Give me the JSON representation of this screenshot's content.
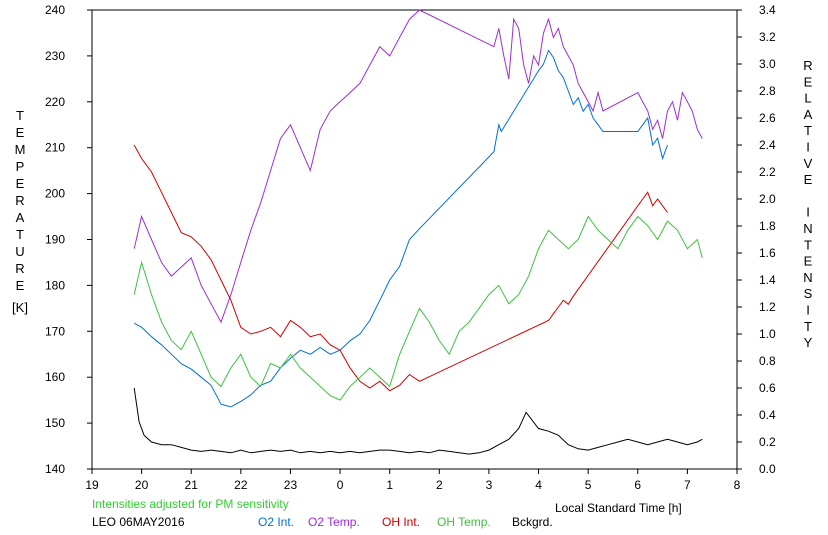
{
  "chart_data": {
    "type": "line",
    "ylabel_left": "TEMPERATURE",
    "ylabel_left_unit": "[K]",
    "ylabel_right": "RELATIVE INTENSITY",
    "xlabel": "Local Standard Time [h]",
    "note": "Intensities adjusted for PM sensitivity",
    "footer_station": "LEO 06MAY2016",
    "x_tick_labels": [
      "19",
      "20",
      "21",
      "22",
      "23",
      "0",
      "1",
      "2",
      "3",
      "4",
      "5",
      "6",
      "7",
      "8"
    ],
    "xlim": [
      19,
      32
    ],
    "ylim_left": [
      140,
      240
    ],
    "y_left_ticks": [
      140,
      150,
      160,
      170,
      180,
      190,
      200,
      210,
      220,
      230,
      240
    ],
    "ylim_right": [
      0.0,
      3.4
    ],
    "y_right_ticks": [
      "0.0",
      "0.2",
      "0.4",
      "0.6",
      "0.8",
      "1.0",
      "1.2",
      "1.4",
      "1.6",
      "1.8",
      "2.0",
      "2.2",
      "2.4",
      "2.6",
      "2.8",
      "3.0",
      "3.2",
      "3.4"
    ],
    "grid": false,
    "series": [
      {
        "name": "O2 Int.",
        "axis": "right",
        "color": "#0070d0",
        "x": [
          19.85,
          20.0,
          20.2,
          20.4,
          20.6,
          20.8,
          21.0,
          21.2,
          21.4,
          21.6,
          21.8,
          22.0,
          22.2,
          22.4,
          22.6,
          22.8,
          23.0,
          23.2,
          23.4,
          23.6,
          23.8,
          24.0,
          24.2,
          24.4,
          24.6,
          24.8,
          25.0,
          25.2,
          25.4,
          25.6,
          27.1,
          27.2,
          27.25,
          28.0,
          28.1,
          28.2,
          28.3,
          28.4,
          28.5,
          28.6,
          28.7,
          28.8,
          28.9,
          29.0,
          29.1,
          29.2,
          29.3,
          30.0,
          30.1,
          30.2,
          30.3,
          30.4,
          30.5,
          30.6
        ],
        "y": [
          1.08,
          1.05,
          0.98,
          0.92,
          0.85,
          0.78,
          0.74,
          0.68,
          0.62,
          0.48,
          0.46,
          0.5,
          0.55,
          0.62,
          0.65,
          0.75,
          0.82,
          0.88,
          0.85,
          0.9,
          0.85,
          0.88,
          0.95,
          1.0,
          1.1,
          1.25,
          1.4,
          1.5,
          1.7,
          1.78,
          2.35,
          2.55,
          2.5,
          2.95,
          3.0,
          3.1,
          3.05,
          2.95,
          2.9,
          2.8,
          2.7,
          2.75,
          2.65,
          2.7,
          2.6,
          2.55,
          2.5,
          2.5,
          2.55,
          2.6,
          2.4,
          2.45,
          2.3,
          2.4
        ]
      },
      {
        "name": "O2 Temp.",
        "axis": "left",
        "color": "#9b30d0",
        "x": [
          19.85,
          20.0,
          20.2,
          20.4,
          20.6,
          20.8,
          21.0,
          21.2,
          21.4,
          21.6,
          21.8,
          22.0,
          22.2,
          22.4,
          22.6,
          22.8,
          23.0,
          23.2,
          23.4,
          23.6,
          23.8,
          24.0,
          24.2,
          24.4,
          24.6,
          24.8,
          25.0,
          25.2,
          25.4,
          25.6,
          27.1,
          27.2,
          27.3,
          27.4,
          27.5,
          27.6,
          27.7,
          27.8,
          27.9,
          28.0,
          28.1,
          28.2,
          28.3,
          28.4,
          28.5,
          28.6,
          28.7,
          28.8,
          28.9,
          29.0,
          29.1,
          29.2,
          29.3,
          30.0,
          30.1,
          30.2,
          30.3,
          30.4,
          30.5,
          30.6,
          30.7,
          30.8,
          30.9,
          31.0,
          31.1,
          31.2,
          31.3
        ],
        "y": [
          188,
          195,
          190,
          185,
          182,
          184,
          186,
          180,
          176,
          172,
          178,
          185,
          192,
          198,
          205,
          212,
          215,
          210,
          205,
          214,
          218,
          220,
          222,
          224,
          228,
          232,
          230,
          234,
          238,
          242,
          232,
          236,
          230,
          225,
          238,
          236,
          228,
          224,
          230,
          228,
          235,
          238,
          234,
          236,
          232,
          230,
          228,
          224,
          222,
          220,
          218,
          222,
          218,
          222,
          220,
          218,
          214,
          216,
          212,
          218,
          220,
          216,
          222,
          220,
          218,
          214,
          212
        ]
      },
      {
        "name": "OH Int.",
        "axis": "right",
        "color": "#d00000",
        "x": [
          19.85,
          20.0,
          20.2,
          20.4,
          20.6,
          20.8,
          21.0,
          21.2,
          21.4,
          21.6,
          21.8,
          22.0,
          22.2,
          22.4,
          22.6,
          22.8,
          23.0,
          23.2,
          23.4,
          23.6,
          23.8,
          24.0,
          24.2,
          24.4,
          24.6,
          24.8,
          25.0,
          25.2,
          25.4,
          25.6,
          28.2,
          28.3,
          28.4,
          28.5,
          28.6,
          28.7,
          30.1,
          30.2,
          30.3,
          30.4,
          30.5,
          30.6
        ],
        "y": [
          2.4,
          2.3,
          2.2,
          2.05,
          1.9,
          1.75,
          1.72,
          1.65,
          1.55,
          1.4,
          1.25,
          1.05,
          1.0,
          1.02,
          1.05,
          0.98,
          1.1,
          1.05,
          0.98,
          1.0,
          0.92,
          0.88,
          0.75,
          0.65,
          0.6,
          0.65,
          0.58,
          0.62,
          0.7,
          0.65,
          1.1,
          1.15,
          1.2,
          1.25,
          1.22,
          1.28,
          2.0,
          2.05,
          1.95,
          2.0,
          1.95,
          1.9
        ]
      },
      {
        "name": "OH Temp.",
        "axis": "left",
        "color": "#40c040",
        "x": [
          19.85,
          20.0,
          20.2,
          20.4,
          20.6,
          20.8,
          21.0,
          21.2,
          21.4,
          21.6,
          21.8,
          22.0,
          22.2,
          22.4,
          22.6,
          22.8,
          23.0,
          23.2,
          23.4,
          23.6,
          23.8,
          24.0,
          24.2,
          24.4,
          24.6,
          24.8,
          25.0,
          25.2,
          25.4,
          25.6,
          25.8,
          26.0,
          26.2,
          26.4,
          26.6,
          26.8,
          27.0,
          27.2,
          27.4,
          27.6,
          27.8,
          28.0,
          28.2,
          28.4,
          28.6,
          28.8,
          29.0,
          29.2,
          29.4,
          29.6,
          29.8,
          30.0,
          30.2,
          30.4,
          30.6,
          30.8,
          31.0,
          31.2,
          31.3
        ],
        "y": [
          178,
          185,
          178,
          172,
          168,
          166,
          170,
          165,
          160,
          158,
          162,
          165,
          160,
          158,
          163,
          162,
          165,
          162,
          160,
          158,
          156,
          155,
          158,
          160,
          162,
          160,
          158,
          165,
          170,
          175,
          172,
          168,
          165,
          170,
          172,
          175,
          178,
          180,
          176,
          178,
          182,
          188,
          192,
          190,
          188,
          190,
          195,
          192,
          190,
          188,
          192,
          195,
          193,
          190,
          194,
          192,
          188,
          190,
          186
        ]
      },
      {
        "name": "Bckgrd.",
        "axis": "right",
        "color": "#000000",
        "x": [
          19.85,
          19.95,
          20.05,
          20.2,
          20.4,
          20.6,
          20.8,
          21.0,
          21.2,
          21.4,
          21.6,
          21.8,
          22.0,
          22.2,
          22.4,
          22.6,
          22.8,
          23.0,
          23.2,
          23.4,
          23.6,
          23.8,
          24.0,
          24.2,
          24.4,
          24.6,
          24.8,
          25.0,
          25.2,
          25.4,
          25.6,
          25.8,
          26.0,
          26.2,
          26.4,
          26.6,
          26.8,
          27.0,
          27.2,
          27.4,
          27.6,
          27.7,
          27.75,
          28.0,
          28.2,
          28.4,
          28.6,
          28.8,
          29.0,
          29.2,
          29.4,
          29.6,
          29.8,
          30.0,
          30.2,
          30.4,
          30.6,
          30.8,
          31.0,
          31.2,
          31.3
        ],
        "y": [
          0.6,
          0.35,
          0.25,
          0.2,
          0.18,
          0.18,
          0.16,
          0.14,
          0.13,
          0.14,
          0.13,
          0.12,
          0.14,
          0.12,
          0.13,
          0.14,
          0.13,
          0.14,
          0.12,
          0.13,
          0.12,
          0.13,
          0.12,
          0.13,
          0.12,
          0.13,
          0.14,
          0.14,
          0.13,
          0.12,
          0.13,
          0.12,
          0.14,
          0.13,
          0.12,
          0.11,
          0.12,
          0.14,
          0.18,
          0.22,
          0.3,
          0.38,
          0.42,
          0.3,
          0.28,
          0.25,
          0.18,
          0.15,
          0.14,
          0.16,
          0.18,
          0.2,
          0.22,
          0.2,
          0.18,
          0.2,
          0.22,
          0.2,
          0.18,
          0.2,
          0.22
        ]
      }
    ]
  }
}
